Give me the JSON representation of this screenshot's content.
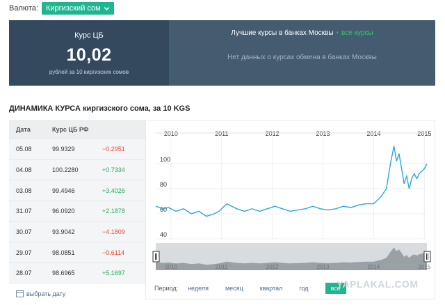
{
  "currency": {
    "label": "Валюта:",
    "selected": "Киргизский сом"
  },
  "cb_panel": {
    "title": "Курс ЦБ",
    "value": "10,02",
    "subtitle": "рублей за 10 киргизских сомов"
  },
  "banks_panel": {
    "title": "Лучшие курсы в банках Москвы",
    "separator": "•",
    "link": "все курсы",
    "empty": "Нет данных о курсах обмена в банках Москвы"
  },
  "section_title": "ДИНАМИКА КУРСА киргизского сома, за 10 KGS",
  "table": {
    "headers": [
      "Дата",
      "Курс ЦБ РФ"
    ],
    "rows": [
      {
        "date": "05.08",
        "rate": "99.9329",
        "change": "−0.2951",
        "dir": "neg"
      },
      {
        "date": "04.08",
        "rate": "100.2280",
        "change": "+0.7334",
        "dir": "pos"
      },
      {
        "date": "03.08",
        "rate": "99.4946",
        "change": "+3.4026",
        "dir": "pos"
      },
      {
        "date": "31.07",
        "rate": "96.0920",
        "change": "+2.1878",
        "dir": "pos"
      },
      {
        "date": "30.07",
        "rate": "93.9042",
        "change": "−4.1809",
        "dir": "neg"
      },
      {
        "date": "29.07",
        "rate": "98.0851",
        "change": "−0.6114",
        "dir": "neg"
      },
      {
        "date": "28.07",
        "rate": "98.6965",
        "change": "+5.1697",
        "dir": "pos"
      }
    ],
    "pick_date": "выбрать дату"
  },
  "period": {
    "label": "Период:",
    "options": [
      "неделя",
      "месяц",
      "квартал",
      "год",
      "все"
    ],
    "active": "все"
  },
  "colors": {
    "accent": "#1fb58f",
    "line": "#29a8e0",
    "header_dark": "#34495e",
    "header_mid": "#445b70",
    "negative": "#e74c3c",
    "positive": "#27ae60"
  },
  "watermark": "YAPLAKAL.COM",
  "chart_data": {
    "type": "line",
    "x_years": [
      "2010",
      "2011",
      "2012",
      "2013",
      "2014",
      "2015"
    ],
    "y_ticks": [
      40,
      60,
      80,
      100
    ],
    "ylim": [
      40,
      120
    ],
    "x": [
      2009.75,
      2009.9,
      2010.0,
      2010.15,
      2010.3,
      2010.45,
      2010.6,
      2010.75,
      2010.9,
      2011.0,
      2011.15,
      2011.25,
      2011.35,
      2011.5,
      2011.65,
      2011.8,
      2011.95,
      2012.1,
      2012.25,
      2012.4,
      2012.55,
      2012.7,
      2012.85,
      2013.0,
      2013.15,
      2013.3,
      2013.45,
      2013.6,
      2013.75,
      2013.9,
      2014.05,
      2014.2,
      2014.3,
      2014.38,
      2014.45,
      2014.5,
      2014.55,
      2014.6,
      2014.65,
      2014.7,
      2014.75,
      2014.8,
      2014.85,
      2014.9,
      2014.95,
      2015.0,
      2015.05,
      2015.1
    ],
    "values": [
      66,
      64,
      65,
      62,
      64,
      60,
      62,
      58,
      60,
      62,
      68,
      66,
      64,
      62,
      64,
      62,
      64,
      66,
      64,
      62,
      63,
      64,
      66,
      64,
      63,
      64,
      66,
      65,
      67,
      68,
      68,
      74,
      80,
      100,
      114,
      102,
      108,
      96,
      84,
      90,
      80,
      88,
      92,
      88,
      92,
      94,
      96,
      100
    ]
  }
}
